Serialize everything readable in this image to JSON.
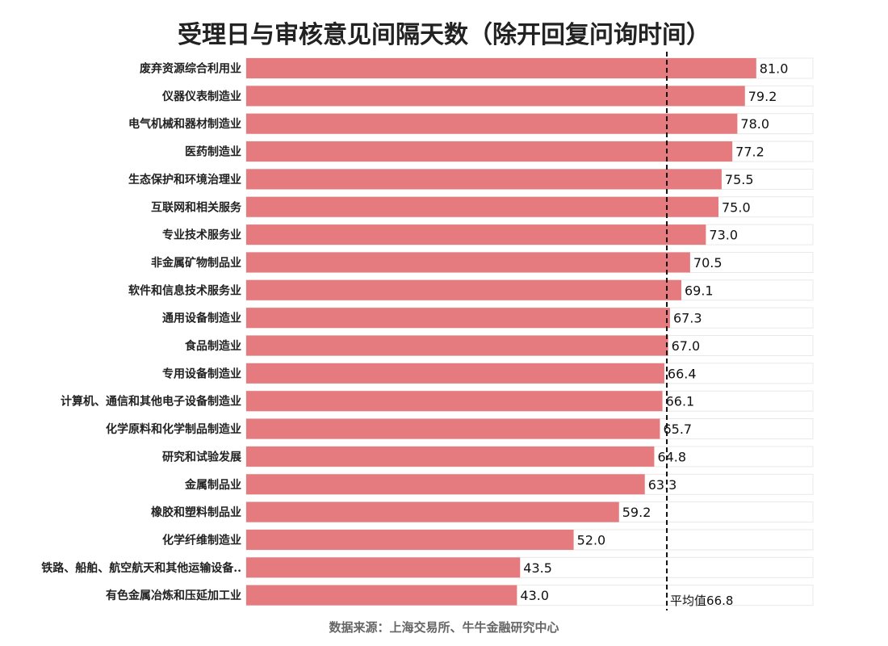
{
  "chart_data": {
    "type": "bar",
    "orientation": "horizontal",
    "title": "受理日与审核意见间隔天数（除开回复问询时间）",
    "source": "数据来源：上海交易所、牛牛金融研究中心",
    "categories": [
      "废弃资源综合利用业",
      "仪器仪表制造业",
      "电气机械和器材制造业",
      "医药制造业",
      "生态保护和环境治理业",
      "互联网和相关服务",
      "专业技术服务业",
      "非金属矿物制品业",
      "软件和信息技术服务业",
      "通用设备制造业",
      "食品制造业",
      "专用设备制造业",
      "计算机、通信和其他电子设备制造业",
      "化学原料和化学制品制造业",
      "研究和试验发展",
      "金属制品业",
      "橡胶和塑料制品业",
      "化学纤维制造业",
      "铁路、船舶、航空航天和其他运输设备..",
      "有色金属冶炼和压延加工业"
    ],
    "values": [
      81.0,
      79.2,
      78.0,
      77.2,
      75.5,
      75.0,
      73.0,
      70.5,
      69.1,
      67.3,
      67.0,
      66.4,
      66.1,
      65.7,
      64.8,
      63.3,
      59.2,
      52.0,
      43.5,
      43.0
    ],
    "value_labels": [
      "81.0",
      "79.2",
      "78.0",
      "77.2",
      "75.5",
      "75.0",
      "73.0",
      "70.5",
      "69.1",
      "67.3",
      "67.0",
      "66.4",
      "66.1",
      "65.7",
      "64.8",
      "63.3",
      "59.2",
      "52.0",
      "43.5",
      "43.0"
    ],
    "average": 66.8,
    "average_label": "平均值66.8",
    "xlim": [
      0,
      90
    ],
    "bar_color": "#e57b7e",
    "track_color": "#ffffff",
    "track_border_color": "#e8e8e8",
    "grid": false,
    "legend": "none"
  }
}
